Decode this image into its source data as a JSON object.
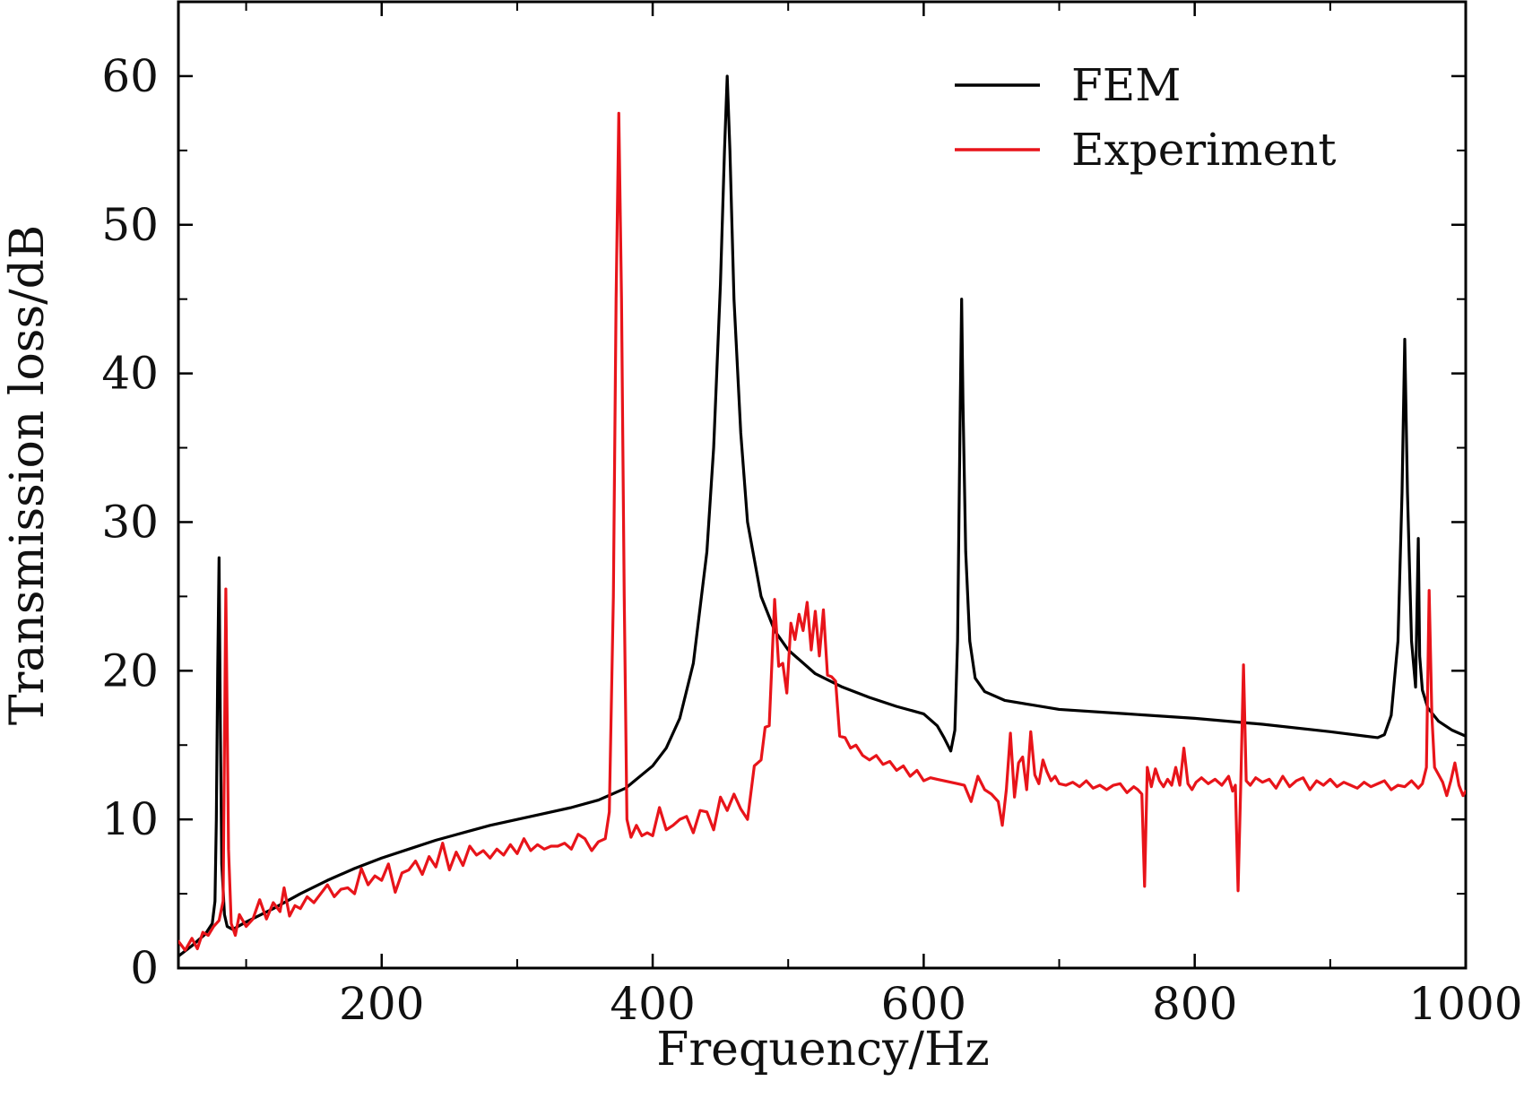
{
  "chart_data": {
    "type": "line",
    "title": "",
    "xlabel": "Frequency/Hz",
    "ylabel": "Transmission loss/dB",
    "xlim": [
      50,
      1000
    ],
    "ylim": [
      0,
      65
    ],
    "x_ticks": [
      200,
      400,
      600,
      800,
      1000
    ],
    "x_minor_ticks": [
      100,
      300,
      500,
      700,
      900
    ],
    "y_ticks": [
      0,
      10,
      20,
      30,
      40,
      50,
      60
    ],
    "y_minor_ticks": [
      5,
      15,
      25,
      35,
      45,
      55
    ],
    "x_tick_labels": [
      "200",
      "400",
      "600",
      "800",
      "1000"
    ],
    "y_tick_labels": [
      "0",
      "10",
      "20",
      "30",
      "40",
      "50",
      "60"
    ],
    "legend": {
      "placement": "top-right",
      "entries": [
        {
          "label": "FEM",
          "color": "#000000"
        },
        {
          "label": "Experiment",
          "color": "#e8141a"
        }
      ]
    },
    "grid": false,
    "series": [
      {
        "name": "FEM",
        "color": "#000000",
        "points": [
          [
            50,
            0.8
          ],
          [
            60,
            1.5
          ],
          [
            70,
            2.3
          ],
          [
            75,
            3.0
          ],
          [
            77,
            4.5
          ],
          [
            78,
            10
          ],
          [
            79,
            20
          ],
          [
            80,
            27.6
          ],
          [
            81,
            16
          ],
          [
            82,
            7
          ],
          [
            84,
            3.6
          ],
          [
            86,
            2.8
          ],
          [
            90,
            2.6
          ],
          [
            100,
            3.1
          ],
          [
            120,
            4.0
          ],
          [
            140,
            5.0
          ],
          [
            160,
            5.9
          ],
          [
            180,
            6.7
          ],
          [
            200,
            7.4
          ],
          [
            220,
            8.0
          ],
          [
            240,
            8.6
          ],
          [
            260,
            9.1
          ],
          [
            280,
            9.6
          ],
          [
            300,
            10.0
          ],
          [
            320,
            10.4
          ],
          [
            340,
            10.8
          ],
          [
            360,
            11.3
          ],
          [
            380,
            12.1
          ],
          [
            400,
            13.6
          ],
          [
            410,
            14.8
          ],
          [
            420,
            16.8
          ],
          [
            430,
            20.5
          ],
          [
            440,
            28
          ],
          [
            445,
            35
          ],
          [
            450,
            46
          ],
          [
            453,
            55
          ],
          [
            455,
            60.0
          ],
          [
            457,
            55
          ],
          [
            460,
            45
          ],
          [
            465,
            36
          ],
          [
            470,
            30
          ],
          [
            480,
            25
          ],
          [
            490,
            22.7
          ],
          [
            500,
            21.4
          ],
          [
            520,
            19.8
          ],
          [
            540,
            18.9
          ],
          [
            560,
            18.2
          ],
          [
            580,
            17.6
          ],
          [
            600,
            17.1
          ],
          [
            610,
            16.3
          ],
          [
            615,
            15.5
          ],
          [
            620,
            14.6
          ],
          [
            623,
            16
          ],
          [
            625,
            22
          ],
          [
            627,
            38
          ],
          [
            628,
            45
          ],
          [
            629,
            38
          ],
          [
            631,
            28
          ],
          [
            634,
            22
          ],
          [
            638,
            19.5
          ],
          [
            645,
            18.6
          ],
          [
            660,
            18.0
          ],
          [
            680,
            17.7
          ],
          [
            700,
            17.4
          ],
          [
            750,
            17.1
          ],
          [
            800,
            16.8
          ],
          [
            850,
            16.4
          ],
          [
            900,
            15.9
          ],
          [
            935,
            15.5
          ],
          [
            940,
            15.7
          ],
          [
            945,
            17
          ],
          [
            950,
            22
          ],
          [
            953,
            32
          ],
          [
            955,
            42.3
          ],
          [
            957,
            32
          ],
          [
            960,
            22
          ],
          [
            963,
            18.9
          ],
          [
            964,
            24
          ],
          [
            965,
            28.9
          ],
          [
            966,
            21
          ],
          [
            968,
            18.7
          ],
          [
            972,
            17.5
          ],
          [
            980,
            16.6
          ],
          [
            990,
            16.0
          ],
          [
            1000,
            15.6
          ]
        ]
      },
      {
        "name": "Experiment",
        "color": "#e8141a",
        "points": [
          [
            50,
            1.8
          ],
          [
            55,
            1.2
          ],
          [
            60,
            2.0
          ],
          [
            64,
            1.3
          ],
          [
            68,
            2.4
          ],
          [
            72,
            2.2
          ],
          [
            76,
            2.8
          ],
          [
            80,
            3.2
          ],
          [
            83,
            4.5
          ],
          [
            85,
            25.5
          ],
          [
            87,
            8.0
          ],
          [
            89,
            3.0
          ],
          [
            92,
            2.2
          ],
          [
            95,
            3.6
          ],
          [
            100,
            2.8
          ],
          [
            105,
            3.3
          ],
          [
            110,
            4.6
          ],
          [
            115,
            3.3
          ],
          [
            120,
            4.4
          ],
          [
            125,
            3.8
          ],
          [
            128,
            5.4
          ],
          [
            132,
            3.5
          ],
          [
            136,
            4.2
          ],
          [
            140,
            4.0
          ],
          [
            145,
            4.8
          ],
          [
            150,
            4.4
          ],
          [
            155,
            5.0
          ],
          [
            160,
            5.6
          ],
          [
            165,
            4.8
          ],
          [
            170,
            5.3
          ],
          [
            175,
            5.4
          ],
          [
            180,
            5.0
          ],
          [
            185,
            6.7
          ],
          [
            190,
            5.6
          ],
          [
            195,
            6.2
          ],
          [
            200,
            5.9
          ],
          [
            205,
            7.0
          ],
          [
            210,
            5.1
          ],
          [
            215,
            6.4
          ],
          [
            220,
            6.6
          ],
          [
            225,
            7.2
          ],
          [
            230,
            6.3
          ],
          [
            235,
            7.5
          ],
          [
            240,
            6.8
          ],
          [
            245,
            8.4
          ],
          [
            250,
            6.6
          ],
          [
            255,
            7.8
          ],
          [
            260,
            6.9
          ],
          [
            265,
            8.2
          ],
          [
            270,
            7.6
          ],
          [
            275,
            7.9
          ],
          [
            280,
            7.4
          ],
          [
            285,
            8.0
          ],
          [
            290,
            7.6
          ],
          [
            295,
            8.3
          ],
          [
            300,
            7.7
          ],
          [
            305,
            8.7
          ],
          [
            310,
            7.9
          ],
          [
            315,
            8.3
          ],
          [
            320,
            8.0
          ],
          [
            325,
            8.2
          ],
          [
            330,
            8.2
          ],
          [
            335,
            8.4
          ],
          [
            340,
            8.0
          ],
          [
            345,
            9.0
          ],
          [
            350,
            8.7
          ],
          [
            355,
            7.9
          ],
          [
            360,
            8.5
          ],
          [
            365,
            8.7
          ],
          [
            368,
            10.5
          ],
          [
            371,
            25
          ],
          [
            373,
            45
          ],
          [
            375,
            57.5
          ],
          [
            377,
            45
          ],
          [
            379,
            25
          ],
          [
            381,
            10
          ],
          [
            384,
            8.8
          ],
          [
            388,
            9.6
          ],
          [
            392,
            8.9
          ],
          [
            396,
            9.1
          ],
          [
            400,
            8.9
          ],
          [
            405,
            10.8
          ],
          [
            410,
            9.3
          ],
          [
            415,
            9.6
          ],
          [
            420,
            10.0
          ],
          [
            425,
            10.2
          ],
          [
            430,
            9.1
          ],
          [
            435,
            10.6
          ],
          [
            440,
            10.5
          ],
          [
            445,
            9.3
          ],
          [
            450,
            11.5
          ],
          [
            455,
            10.6
          ],
          [
            460,
            11.7
          ],
          [
            465,
            10.7
          ],
          [
            470,
            10.0
          ],
          [
            475,
            13.6
          ],
          [
            480,
            14.0
          ],
          [
            483,
            16.2
          ],
          [
            486,
            16.3
          ],
          [
            490,
            24.8
          ],
          [
            493,
            20.3
          ],
          [
            496,
            20.5
          ],
          [
            499,
            18.5
          ],
          [
            502,
            23.2
          ],
          [
            505,
            22.1
          ],
          [
            508,
            23.8
          ],
          [
            511,
            22.7
          ],
          [
            514,
            24.6
          ],
          [
            517,
            21.4
          ],
          [
            520,
            24.0
          ],
          [
            523,
            21.0
          ],
          [
            526,
            24.1
          ],
          [
            529,
            19.7
          ],
          [
            532,
            19.6
          ],
          [
            535,
            19.3
          ],
          [
            538,
            15.6
          ],
          [
            542,
            15.5
          ],
          [
            546,
            14.8
          ],
          [
            550,
            15.0
          ],
          [
            555,
            14.3
          ],
          [
            560,
            14.0
          ],
          [
            565,
            14.3
          ],
          [
            570,
            13.7
          ],
          [
            575,
            13.9
          ],
          [
            580,
            13.3
          ],
          [
            585,
            13.6
          ],
          [
            590,
            12.9
          ],
          [
            595,
            13.3
          ],
          [
            600,
            12.6
          ],
          [
            605,
            12.8
          ],
          [
            610,
            12.7
          ],
          [
            615,
            12.6
          ],
          [
            620,
            12.5
          ],
          [
            625,
            12.4
          ],
          [
            630,
            12.3
          ],
          [
            635,
            11.2
          ],
          [
            640,
            12.9
          ],
          [
            645,
            12.0
          ],
          [
            650,
            11.7
          ],
          [
            655,
            11.2
          ],
          [
            658,
            9.6
          ],
          [
            661,
            12.0
          ],
          [
            664,
            15.8
          ],
          [
            667,
            11.5
          ],
          [
            670,
            13.8
          ],
          [
            673,
            14.2
          ],
          [
            676,
            12.0
          ],
          [
            679,
            15.9
          ],
          [
            682,
            13.0
          ],
          [
            685,
            12.4
          ],
          [
            688,
            14.0
          ],
          [
            691,
            13.2
          ],
          [
            694,
            12.6
          ],
          [
            697,
            12.9
          ],
          [
            700,
            12.4
          ],
          [
            705,
            12.3
          ],
          [
            710,
            12.5
          ],
          [
            715,
            12.2
          ],
          [
            720,
            12.6
          ],
          [
            725,
            12.1
          ],
          [
            730,
            12.3
          ],
          [
            735,
            12.0
          ],
          [
            740,
            12.3
          ],
          [
            745,
            12.4
          ],
          [
            750,
            11.8
          ],
          [
            755,
            12.2
          ],
          [
            758,
            12.0
          ],
          [
            761,
            11.7
          ],
          [
            763,
            5.5
          ],
          [
            765,
            13.5
          ],
          [
            768,
            12.2
          ],
          [
            771,
            13.4
          ],
          [
            774,
            12.6
          ],
          [
            777,
            12.2
          ],
          [
            780,
            12.7
          ],
          [
            783,
            12.3
          ],
          [
            786,
            13.5
          ],
          [
            789,
            12.3
          ],
          [
            792,
            14.8
          ],
          [
            795,
            12.4
          ],
          [
            798,
            12.0
          ],
          [
            801,
            12.5
          ],
          [
            805,
            12.8
          ],
          [
            810,
            12.4
          ],
          [
            815,
            12.7
          ],
          [
            820,
            12.3
          ],
          [
            825,
            12.9
          ],
          [
            828,
            11.9
          ],
          [
            830,
            12.3
          ],
          [
            832,
            5.2
          ],
          [
            834,
            12.4
          ],
          [
            836,
            20.4
          ],
          [
            838,
            12.6
          ],
          [
            841,
            12.3
          ],
          [
            845,
            12.8
          ],
          [
            850,
            12.5
          ],
          [
            855,
            12.7
          ],
          [
            860,
            12.1
          ],
          [
            865,
            12.9
          ],
          [
            870,
            12.2
          ],
          [
            875,
            12.6
          ],
          [
            880,
            12.8
          ],
          [
            885,
            12.0
          ],
          [
            890,
            12.6
          ],
          [
            895,
            12.3
          ],
          [
            900,
            12.7
          ],
          [
            905,
            12.2
          ],
          [
            910,
            12.5
          ],
          [
            915,
            12.3
          ],
          [
            920,
            12.1
          ],
          [
            925,
            12.5
          ],
          [
            930,
            12.2
          ],
          [
            935,
            12.4
          ],
          [
            940,
            12.6
          ],
          [
            945,
            12.0
          ],
          [
            950,
            12.3
          ],
          [
            955,
            12.2
          ],
          [
            960,
            12.6
          ],
          [
            965,
            12.1
          ],
          [
            968,
            12.4
          ],
          [
            971,
            13.5
          ],
          [
            973,
            25.4
          ],
          [
            975,
            17
          ],
          [
            977,
            13.5
          ],
          [
            980,
            13.0
          ],
          [
            983,
            12.5
          ],
          [
            986,
            11.6
          ],
          [
            989,
            12.6
          ],
          [
            992,
            13.8
          ],
          [
            995,
            12.3
          ],
          [
            998,
            11.6
          ],
          [
            1000,
            11.9
          ]
        ]
      }
    ]
  }
}
